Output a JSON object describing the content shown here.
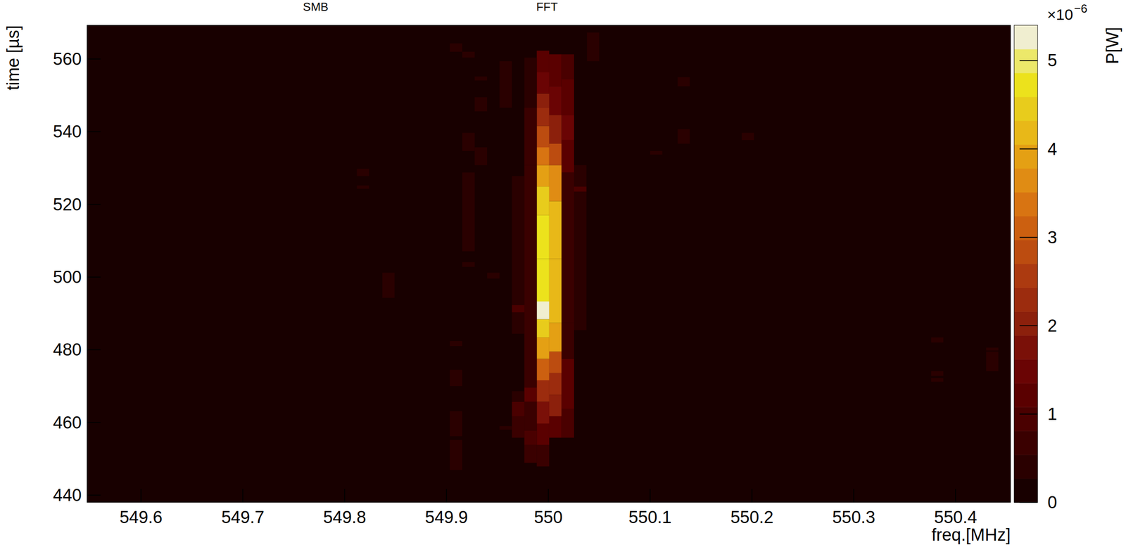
{
  "chart_data": {
    "type": "heatmap",
    "annotations": [
      "SMB",
      "FFT"
    ],
    "x_label": "freq.[MHz]",
    "y_label": "time [µs]",
    "colorbar_label": "P[W]",
    "colorbar_multiplier": "×10",
    "colorbar_exponent": "−6",
    "xlim": [
      549.547,
      550.454
    ],
    "xticks": [
      549.6,
      549.7,
      549.8,
      549.9,
      550,
      550.1,
      550.2,
      550.3,
      550.4
    ],
    "ylim": [
      438,
      569.3
    ],
    "yticks": [
      440,
      460,
      480,
      500,
      520,
      540,
      560
    ],
    "zlim": [
      0,
      5.4
    ],
    "zticks": [
      0,
      1,
      2,
      3,
      4,
      5
    ],
    "columns": [
      {
        "f0": 549.9887,
        "f1": 550.0009,
        "segments": [
          [
            447.9,
            453.8,
            0.7
          ],
          [
            453.8,
            459.7,
            1.2
          ],
          [
            459.7,
            465.7,
            1.7
          ],
          [
            465.7,
            471.6,
            2.3
          ],
          [
            471.6,
            477.5,
            3.0
          ],
          [
            477.5,
            483.4,
            3.8
          ],
          [
            483.4,
            488.4,
            4.5
          ],
          [
            488.4,
            493.3,
            5.3
          ],
          [
            493.3,
            505.0,
            4.6
          ],
          [
            505.0,
            517.0,
            4.8
          ],
          [
            517.0,
            524.9,
            4.4
          ],
          [
            524.9,
            530.8,
            3.9
          ],
          [
            530.8,
            535.7,
            3.3
          ],
          [
            535.7,
            541.6,
            2.8
          ],
          [
            541.6,
            546.6,
            2.3
          ],
          [
            546.6,
            550.5,
            1.9
          ],
          [
            550.5,
            556.4,
            1.6
          ],
          [
            556.4,
            562.3,
            1.3
          ]
        ]
      },
      {
        "f0": 550.0009,
        "f1": 550.0131,
        "segments": [
          [
            455.8,
            461.7,
            1.2
          ],
          [
            461.7,
            467.6,
            1.9
          ],
          [
            467.6,
            473.6,
            2.2
          ],
          [
            473.6,
            479.5,
            2.8
          ],
          [
            479.5,
            487.4,
            3.8
          ],
          [
            487.4,
            505.0,
            4.1
          ],
          [
            505.0,
            520.9,
            4.3
          ],
          [
            520.9,
            530.8,
            3.7
          ],
          [
            530.8,
            536.7,
            2.7
          ],
          [
            536.7,
            544.6,
            2.0
          ],
          [
            544.6,
            552.5,
            1.5
          ],
          [
            552.5,
            561.3,
            1.2
          ]
        ]
      },
      {
        "f0": 550.0131,
        "f1": 550.0253,
        "segments": [
          [
            455.8,
            463.7,
            1.0
          ],
          [
            463.7,
            477.5,
            1.3
          ],
          [
            477.5,
            487.4,
            0.7
          ],
          [
            487.4,
            528.8,
            0.6
          ],
          [
            528.8,
            537.7,
            1.3
          ],
          [
            537.7,
            544.6,
            1.6
          ],
          [
            544.6,
            554.5,
            1.2
          ],
          [
            554.5,
            561.3,
            1.0
          ]
        ]
      },
      {
        "f0": 550.0253,
        "f1": 550.0375,
        "segments": [
          [
            485.4,
            523.5,
            0.45
          ],
          [
            523.5,
            524.9,
            0.9
          ],
          [
            524.9,
            530.8,
            0.45
          ]
        ]
      },
      {
        "f0": 549.9765,
        "f1": 549.9887,
        "segments": [
          [
            448.9,
            453.8,
            0.6
          ],
          [
            453.8,
            457.8,
            0.9
          ],
          [
            457.8,
            465.7,
            0.7
          ],
          [
            465.7,
            469.6,
            1.1
          ],
          [
            469.6,
            530.8,
            0.55
          ],
          [
            530.8,
            546.6,
            0.6
          ],
          [
            546.6,
            560.4,
            0.5
          ]
        ]
      },
      {
        "f0": 549.9643,
        "f1": 549.9765,
        "segments": [
          [
            455.8,
            461.7,
            0.6
          ],
          [
            461.7,
            465.7,
            0.9
          ],
          [
            465.7,
            468.6,
            0.5
          ],
          [
            484.4,
            490.3,
            0.4
          ],
          [
            490.3,
            492.3,
            0.9
          ],
          [
            492.3,
            527.8,
            0.4
          ]
        ]
      },
      {
        "f0": 549.9521,
        "f1": 549.9643,
        "segments": [
          [
            458.0,
            459.0,
            0.4
          ],
          [
            546.6,
            559.4,
            0.35
          ]
        ]
      },
      {
        "f0": 549.9399,
        "f1": 549.9521,
        "segments": [
          [
            499.6,
            501.2,
            0.3
          ]
        ]
      },
      {
        "f0": 549.9277,
        "f1": 549.9399,
        "segments": [
          [
            530.8,
            535.7,
            0.3
          ],
          [
            545.6,
            549.5,
            0.3
          ],
          [
            554.1,
            555.2,
            0.3
          ]
        ]
      },
      {
        "f0": 549.9155,
        "f1": 549.9277,
        "segments": [
          [
            502.8,
            504.1,
            0.3
          ],
          [
            507.1,
            528.8,
            0.3
          ],
          [
            534.7,
            539.7,
            0.35
          ],
          [
            560.4,
            562.0,
            0.3
          ]
        ]
      },
      {
        "f0": 549.9033,
        "f1": 549.9155,
        "segments": [
          [
            446.9,
            455.2,
            0.4
          ],
          [
            456.2,
            463.1,
            0.45
          ],
          [
            470.0,
            474.5,
            0.45
          ],
          [
            481.0,
            482.4,
            0.4
          ],
          [
            562.0,
            564.3,
            0.35
          ]
        ]
      },
      {
        "f0": 549.837,
        "f1": 549.849,
        "segments": [
          [
            494.3,
            501.2,
            0.45
          ]
        ]
      },
      {
        "f0": 549.812,
        "f1": 549.824,
        "segments": [
          [
            524.3,
            525.2,
            0.3
          ],
          [
            527.8,
            529.8,
            0.35
          ]
        ]
      },
      {
        "f0": 550.038,
        "f1": 550.05,
        "segments": [
          [
            559.4,
            567.3,
            0.35
          ]
        ]
      },
      {
        "f0": 550.1,
        "f1": 550.112,
        "segments": [
          [
            533.7,
            534.7,
            0.3
          ]
        ]
      },
      {
        "f0": 550.127,
        "f1": 550.139,
        "segments": [
          [
            536.7,
            540.7,
            0.35
          ],
          [
            552.5,
            555.0,
            0.35
          ]
        ]
      },
      {
        "f0": 550.19,
        "f1": 550.202,
        "segments": [
          [
            537.7,
            539.7,
            0.3
          ]
        ]
      },
      {
        "f0": 550.376,
        "f1": 550.388,
        "segments": [
          [
            471.2,
            472.2,
            0.3
          ],
          [
            472.8,
            474.1,
            0.3
          ],
          [
            482.0,
            483.4,
            0.3
          ]
        ]
      },
      {
        "f0": 550.43,
        "f1": 550.442,
        "segments": [
          [
            474.1,
            479.5,
            0.35
          ],
          [
            479.8,
            480.6,
            0.3
          ]
        ]
      }
    ]
  }
}
